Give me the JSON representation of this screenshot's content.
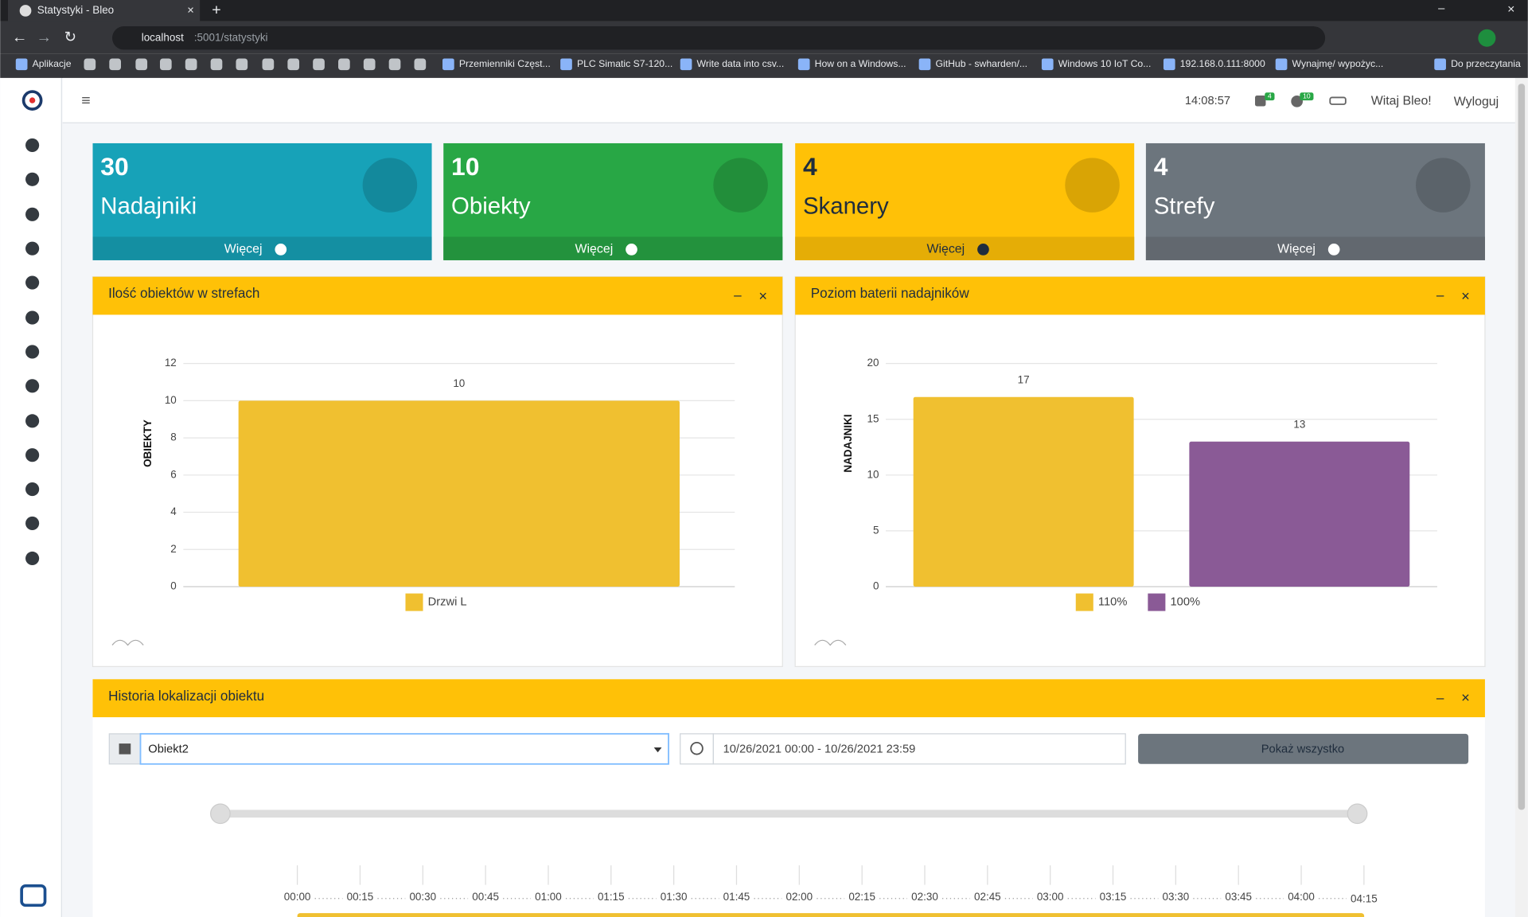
{
  "browser": {
    "tab_title": "Statystyki - Bleo",
    "url_host": "localhost",
    "url_path": ":5001/statystyki",
    "bookmarks": [
      "Aplikacje",
      "Przemienniki Częst...",
      "PLC Simatic S7-120...",
      "Write data into csv...",
      "How on a Windows...",
      "GitHub - swharden/...",
      "Windows 10 IoT Co...",
      "192.168.0.111:8000",
      "Wynajmę/ wypożyc...",
      "Do przeczytania"
    ]
  },
  "header": {
    "time": "14:08:57",
    "badge_tasks": "4",
    "badge_checks": "10",
    "greeting": "Witaj Bleo!",
    "logout": "Wyloguj"
  },
  "cards": [
    {
      "count": 30,
      "label": "Nadajniki",
      "more": "Więcej",
      "color": "#17a2b8",
      "footer_color": "#148fa2"
    },
    {
      "count": 10,
      "label": "Obiekty",
      "more": "Więcej",
      "color": "#28a745",
      "footer_color": "#23923d"
    },
    {
      "count": 4,
      "label": "Skanery",
      "more": "Więcej",
      "color": "#ffc107",
      "footer_color": "#e5ad06"
    },
    {
      "count": 4,
      "label": "Strefy",
      "more": "Więcej",
      "color": "#6c757d",
      "footer_color": "#62686f"
    }
  ],
  "charts": [
    {
      "type": "bar",
      "title": "Ilość obiektów w strefach",
      "y_label": "OBIEKTY",
      "ylim": [
        0,
        12
      ],
      "yticks": [
        0,
        2,
        4,
        6,
        8,
        10,
        12
      ],
      "grid": true,
      "series": [
        {
          "name": "Drzwi L",
          "color": "#f0c030",
          "values": [
            10
          ]
        }
      ]
    },
    {
      "type": "bar",
      "title": "Poziom baterii nadajników",
      "y_label": "NADAJNIKI",
      "ylim": [
        0,
        20
      ],
      "yticks": [
        0,
        5,
        10,
        15,
        20
      ],
      "grid": true,
      "series": [
        {
          "name": "110%",
          "color": "#f0c030",
          "values": [
            17
          ]
        },
        {
          "name": "100%",
          "color": "#8a5a96",
          "values": [
            13
          ]
        }
      ]
    }
  ],
  "history": {
    "title": "Historia lokalizacji obiektu",
    "object": "Obiekt2",
    "date_range": "10/26/2021 00:00 - 10/26/2021 23:59",
    "button": "Pokaż wszystko",
    "timeline": [
      "00:00",
      "00:15",
      "00:30",
      "00:45",
      "01:00",
      "01:15",
      "01:30",
      "01:45",
      "02:00",
      "02:15",
      "02:30",
      "02:45",
      "03:00",
      "03:15",
      "03:30",
      "03:45",
      "04:00",
      "04:15"
    ]
  }
}
